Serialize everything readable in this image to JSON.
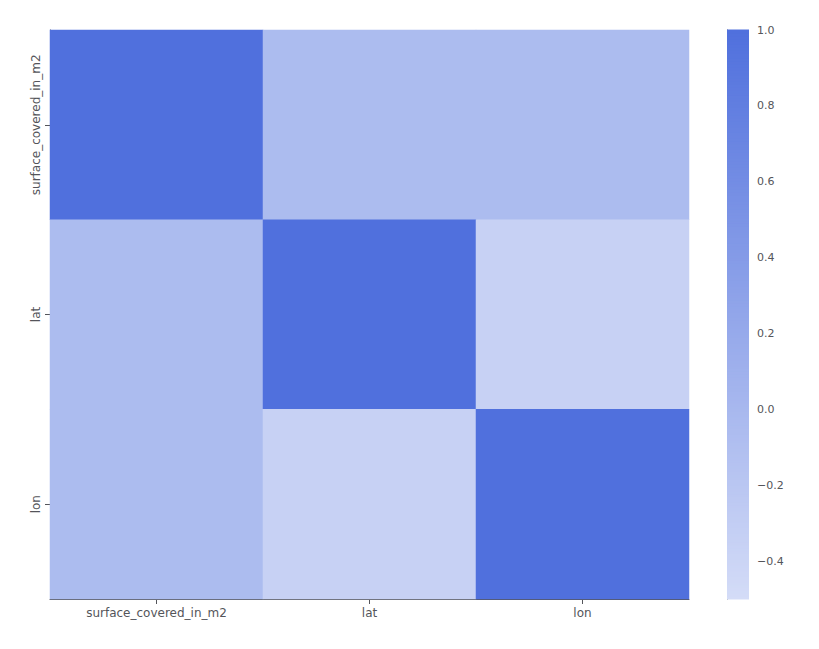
{
  "chart_data": {
    "type": "heatmap",
    "categories": [
      "surface_covered_in_m2",
      "lat",
      "lon"
    ],
    "cells": [
      [
        1.0,
        -0.05,
        -0.05
      ],
      [
        -0.05,
        1.0,
        -0.35
      ],
      [
        -0.05,
        -0.35,
        1.0
      ]
    ],
    "colorbar_range": [
      -0.5,
      1.0
    ],
    "colorbar_ticks": [
      {
        "value": 1.0,
        "label": "1.0"
      },
      0.8,
      0.6,
      0.4,
      0.2,
      {
        "value": 0.0,
        "label": "0.0"
      },
      {
        "value": -0.2,
        "label": "−0.2"
      },
      {
        "value": -0.4,
        "label": "−0.4"
      }
    ],
    "grid": false
  }
}
